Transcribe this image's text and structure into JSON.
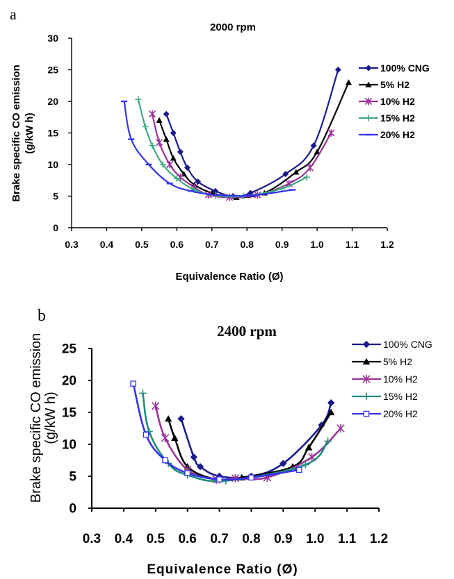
{
  "chart_data": [
    {
      "panel_label": "a",
      "type": "line",
      "title": "2000 rpm",
      "xlabel": "Equivalence Ratio (Ø)",
      "ylabel_line1": "Brake specific CO emission",
      "ylabel_line2": "(g/kW h)",
      "xlim": [
        0.3,
        1.2
      ],
      "ylim": [
        0,
        30
      ],
      "x_ticks": [
        "0.3",
        "0.4",
        "0.5",
        "0.6",
        "0.7",
        "0.8",
        "0.9",
        "1.0",
        "1.1",
        "1.2"
      ],
      "y_ticks": [
        "0",
        "5",
        "10",
        "15",
        "20",
        "25",
        "30"
      ],
      "grid": false,
      "legend_position": "right",
      "series": [
        {
          "name": "100% CNG",
          "color": "#1a1a8c",
          "marker": "diamond",
          "points": [
            [
              0.57,
              18
            ],
            [
              0.59,
              15
            ],
            [
              0.61,
              12
            ],
            [
              0.63,
              9.5
            ],
            [
              0.66,
              7.3
            ],
            [
              0.71,
              5.8
            ],
            [
              0.76,
              5.0
            ],
            [
              0.81,
              5.5
            ],
            [
              0.91,
              8.5
            ],
            [
              0.99,
              13
            ],
            [
              1.06,
              25
            ]
          ]
        },
        {
          "name": "5% H2",
          "color": "#000000",
          "marker": "triangle",
          "points": [
            [
              0.55,
              17
            ],
            [
              0.57,
              14
            ],
            [
              0.59,
              11
            ],
            [
              0.62,
              8.5
            ],
            [
              0.65,
              6.8
            ],
            [
              0.7,
              5.5
            ],
            [
              0.77,
              4.8
            ],
            [
              0.85,
              5.5
            ],
            [
              0.94,
              8.8
            ],
            [
              1.0,
              12
            ],
            [
              1.09,
              23
            ]
          ]
        },
        {
          "name": "10% H2",
          "color": "#993399",
          "marker": "star",
          "points": [
            [
              0.53,
              18
            ],
            [
              0.55,
              13.5
            ],
            [
              0.58,
              10
            ],
            [
              0.61,
              8
            ],
            [
              0.65,
              6.4
            ],
            [
              0.69,
              5.2
            ],
            [
              0.75,
              4.8
            ],
            [
              0.83,
              5.2
            ],
            [
              0.92,
              7
            ],
            [
              0.98,
              9.5
            ],
            [
              1.04,
              15
            ]
          ]
        },
        {
          "name": "15% H2",
          "color": "#3daa80",
          "marker": "plus",
          "points": [
            [
              0.49,
              20.3
            ],
            [
              0.51,
              16
            ],
            [
              0.53,
              13
            ],
            [
              0.56,
              10
            ],
            [
              0.6,
              7.8
            ],
            [
              0.65,
              6
            ],
            [
              0.71,
              5.1
            ],
            [
              0.79,
              5.0
            ],
            [
              0.9,
              6.2
            ],
            [
              0.97,
              8
            ]
          ]
        },
        {
          "name": "20% H2",
          "color": "#3333ee",
          "marker": "dash",
          "points": [
            [
              0.45,
              20
            ],
            [
              0.47,
              14
            ],
            [
              0.52,
              10
            ],
            [
              0.58,
              7
            ],
            [
              0.64,
              5.8
            ],
            [
              0.71,
              5.2
            ],
            [
              0.81,
              5.1
            ],
            [
              0.93,
              6.0
            ]
          ]
        }
      ]
    },
    {
      "panel_label": "b",
      "type": "line",
      "title": "2400 rpm",
      "xlabel": "Equivalence Ratio (Ø)",
      "ylabel_line1": "Brake specific CO emission",
      "ylabel_line2": "(g/kW h)",
      "xlim": [
        0.3,
        1.2
      ],
      "ylim": [
        0,
        25
      ],
      "x_ticks": [
        "0.3",
        "0.4",
        "0.5",
        "0.6",
        "0.7",
        "0.8",
        "0.9",
        "1.0",
        "1.1",
        "1.2"
      ],
      "y_ticks": [
        "0",
        "5",
        "10",
        "15",
        "20",
        "25"
      ],
      "grid": false,
      "legend_position": "top-right",
      "series": [
        {
          "name": "100% CNG",
          "color": "#1a1a8c",
          "marker": "diamond",
          "points": [
            [
              0.58,
              14
            ],
            [
              0.62,
              8
            ],
            [
              0.64,
              6.5
            ],
            [
              0.7,
              5
            ],
            [
              0.8,
              5
            ],
            [
              0.9,
              7
            ],
            [
              1.02,
              13
            ],
            [
              1.05,
              16.5
            ]
          ]
        },
        {
          "name": "5% H2",
          "color": "#000000",
          "marker": "triangle",
          "points": [
            [
              0.54,
              14
            ],
            [
              0.56,
              11
            ],
            [
              0.6,
              6.5
            ],
            [
              0.69,
              4.5
            ],
            [
              0.77,
              4.8
            ],
            [
              0.93,
              6.5
            ],
            [
              0.98,
              9.5
            ],
            [
              1.05,
              15
            ]
          ]
        },
        {
          "name": "10% H2",
          "color": "#993399",
          "marker": "star",
          "points": [
            [
              0.5,
              16
            ],
            [
              0.53,
              11
            ],
            [
              0.6,
              6
            ],
            [
              0.69,
              4.5
            ],
            [
              0.75,
              4.7
            ],
            [
              0.85,
              4.8
            ],
            [
              0.99,
              8
            ],
            [
              1.08,
              12.5
            ]
          ]
        },
        {
          "name": "15% H2",
          "color": "#1f8c7a",
          "marker": "plus",
          "points": [
            [
              0.46,
              18
            ],
            [
              0.48,
              12
            ],
            [
              0.54,
              7
            ],
            [
              0.6,
              5.2
            ],
            [
              0.72,
              4.3
            ],
            [
              0.97,
              6.8
            ],
            [
              1.04,
              10.5
            ]
          ]
        },
        {
          "name": "20% H2",
          "color": "#3333ee",
          "marker": "square",
          "points": [
            [
              0.43,
              19.5
            ],
            [
              0.47,
              11.5
            ],
            [
              0.53,
              7.5
            ],
            [
              0.6,
              5.5
            ],
            [
              0.7,
              4.5
            ],
            [
              0.8,
              4.8
            ],
            [
              0.95,
              6.0
            ]
          ]
        }
      ]
    }
  ]
}
